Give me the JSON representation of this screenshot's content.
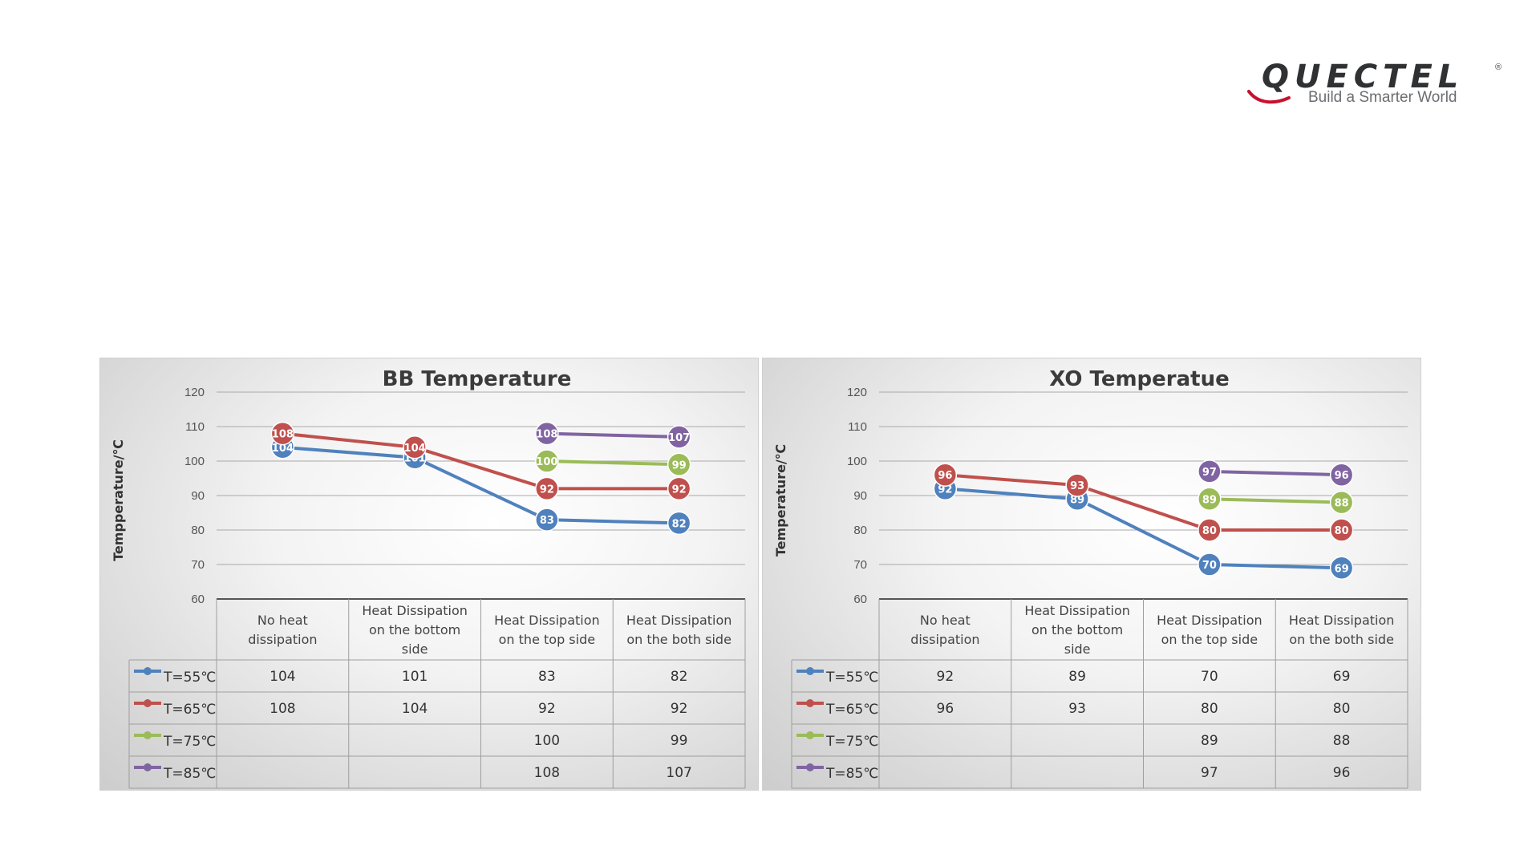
{
  "logo": {
    "word": "QUECTEL",
    "tagline": "Build a Smarter World",
    "registered": "®"
  },
  "colors": {
    "T55": "#4f81bd",
    "T65": "#c0504d",
    "T75": "#9bbb59",
    "T85": "#8064a2"
  },
  "chart_data": [
    {
      "type": "line",
      "title": "BB Temperature",
      "ylabel": "Tempperature/℃",
      "xlabel": "",
      "ylim": [
        60,
        120
      ],
      "yticks": [
        60,
        70,
        80,
        90,
        100,
        110,
        120
      ],
      "grid": true,
      "legend": "table-left",
      "categories": [
        [
          "No heat",
          "dissipation"
        ],
        [
          "Heat Dissipation",
          "on the bottom",
          "side"
        ],
        [
          "Heat Dissipation",
          "on the top side"
        ],
        [
          "Heat Dissipation",
          "on the both side"
        ]
      ],
      "series": [
        {
          "name": "T=55℃",
          "color_key": "T55",
          "values": [
            104,
            101,
            83,
            82
          ]
        },
        {
          "name": "T=65℃",
          "color_key": "T65",
          "values": [
            108,
            104,
            92,
            92
          ]
        },
        {
          "name": "T=75℃",
          "color_key": "T75",
          "values": [
            null,
            null,
            100,
            99
          ]
        },
        {
          "name": "T=85℃",
          "color_key": "T85",
          "values": [
            null,
            null,
            108,
            107
          ]
        }
      ]
    },
    {
      "type": "line",
      "title": "XO Temperatue",
      "ylabel": "Temperature/℃",
      "xlabel": "",
      "ylim": [
        60,
        120
      ],
      "yticks": [
        60,
        70,
        80,
        90,
        100,
        110,
        120
      ],
      "grid": true,
      "legend": "table-left",
      "categories": [
        [
          "No heat",
          "dissipation"
        ],
        [
          "Heat Dissipation",
          "on the bottom",
          "side"
        ],
        [
          "Heat Dissipation",
          "on the top side"
        ],
        [
          "Heat Dissipation",
          "on the both side"
        ]
      ],
      "series": [
        {
          "name": "T=55℃",
          "color_key": "T55",
          "values": [
            92,
            89,
            70,
            69
          ]
        },
        {
          "name": "T=65℃",
          "color_key": "T65",
          "values": [
            96,
            93,
            80,
            80
          ]
        },
        {
          "name": "T=75℃",
          "color_key": "T75",
          "values": [
            null,
            null,
            89,
            88
          ]
        },
        {
          "name": "T=85℃",
          "color_key": "T85",
          "values": [
            null,
            null,
            97,
            96
          ]
        }
      ]
    }
  ]
}
